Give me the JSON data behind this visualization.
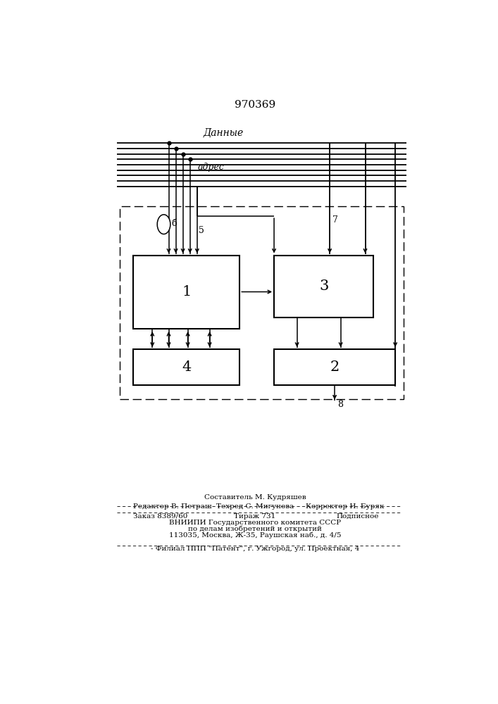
{
  "title": "970369",
  "bg_color": "#ffffff",
  "data_label": "Данные",
  "addr_label": "адрес",
  "block1_label": "1",
  "block2_label": "2",
  "block3_label": "3",
  "block4_label": "4",
  "label5": "5",
  "label6": "б",
  "label7": "7",
  "label8": "8",
  "footer_line1_center": "Составитель М. Кудряшев",
  "footer_line2_left": "Редактор В. Петраш",
  "footer_line2_center": "Техред С. Мигунова",
  "footer_line2_right": "Корректор Н. Буряк",
  "footer_line3_left": "Заказ 8389/60",
  "footer_line3_center": "Тираж 731",
  "footer_line3_right": "Подписное",
  "footer_line4": "ВНИИПИ Государственного комитета СССР",
  "footer_line5": "по делам изобретений и открытий",
  "footer_line6": "113035, Москва, Ж-35, Раушская наб., д. 4/5",
  "footer_line7": "- Филиал ППП \"Патент\", г. Ужгород, ул. Проектная, 4"
}
